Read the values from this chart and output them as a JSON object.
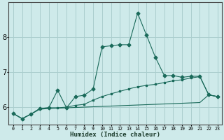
{
  "xlabel": "Humidex (Indice chaleur)",
  "bg_color": "#ceeaea",
  "grid_color": "#aacece",
  "line_color": "#1a6a5a",
  "x_values": [
    0,
    1,
    2,
    3,
    4,
    5,
    6,
    7,
    8,
    9,
    10,
    11,
    12,
    13,
    14,
    15,
    16,
    17,
    18,
    19,
    20,
    21,
    22,
    23
  ],
  "line1_y": [
    5.82,
    5.67,
    5.8,
    5.96,
    5.98,
    6.48,
    5.98,
    6.3,
    6.34,
    6.52,
    7.72,
    7.75,
    7.78,
    7.78,
    8.68,
    8.05,
    7.42,
    6.9,
    6.9,
    6.85,
    6.88,
    6.88,
    6.35,
    6.3
  ],
  "line2_y": [
    5.82,
    5.67,
    5.8,
    5.96,
    5.98,
    5.98,
    6.0,
    6.05,
    6.08,
    6.2,
    6.3,
    6.38,
    6.45,
    6.52,
    6.58,
    6.62,
    6.65,
    6.7,
    6.75,
    6.78,
    6.83,
    6.87,
    6.35,
    6.3
  ],
  "line3_y": [
    5.82,
    5.67,
    5.8,
    5.94,
    5.96,
    5.97,
    5.98,
    5.99,
    6.0,
    6.01,
    6.02,
    6.03,
    6.04,
    6.05,
    6.06,
    6.07,
    6.08,
    6.09,
    6.1,
    6.11,
    6.12,
    6.13,
    6.35,
    6.3
  ],
  "ylim": [
    5.5,
    9.0
  ],
  "yticks": [
    6,
    7,
    8
  ],
  "xlim": [
    -0.5,
    23.5
  ],
  "xtick_labels": [
    "0",
    "1",
    "2",
    "3",
    "4",
    "5",
    "6",
    "7",
    "8",
    "9",
    "10",
    "11",
    "12",
    "13",
    "14",
    "15",
    "16",
    "17",
    "18",
    "19",
    "20",
    "21",
    "22",
    "23"
  ]
}
